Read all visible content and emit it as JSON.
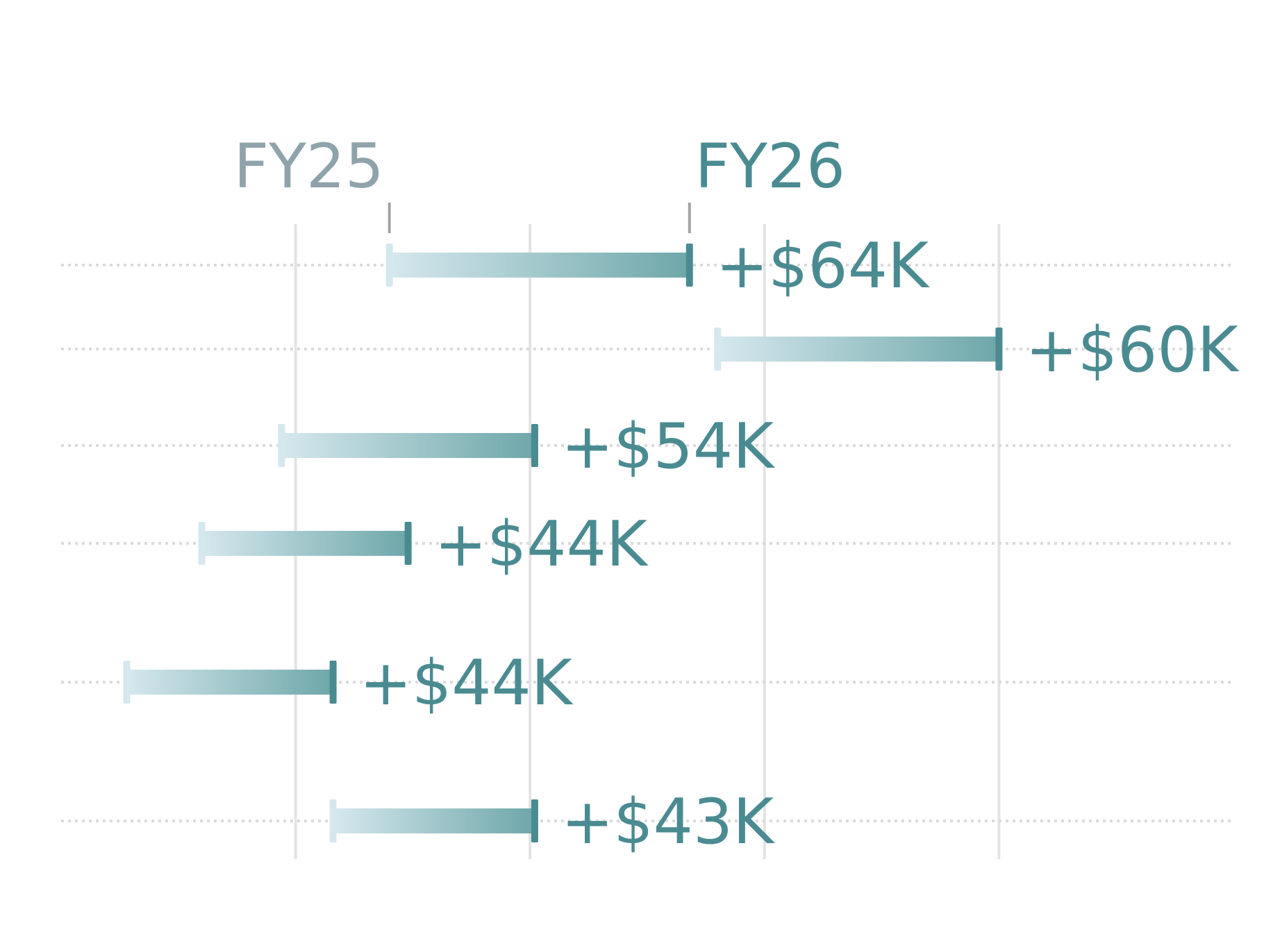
{
  "chart_data": {
    "type": "dumbbell",
    "title": "",
    "xlabel": "",
    "ylabel": "",
    "series": [
      {
        "name": "FY25"
      },
      {
        "name": "FY26"
      }
    ],
    "rows": [
      {
        "fy25": 420,
        "fy26": 484,
        "delta_label": "+$64K"
      },
      {
        "fy25": 490,
        "fy26": 550,
        "delta_label": "+$60K"
      },
      {
        "fy25": 397,
        "fy26": 451,
        "delta_label": "+$54K"
      },
      {
        "fy25": 380,
        "fy26": 424,
        "delta_label": "+$44K"
      },
      {
        "fy25": 364,
        "fy26": 408,
        "delta_label": "+$44K"
      },
      {
        "fy25": 408,
        "fy26": 451,
        "delta_label": "+$43K"
      }
    ],
    "xlim": [
      350,
      600
    ],
    "grid": true,
    "legend": "header-top"
  },
  "colors": {
    "fy25": "#8fa3ab",
    "fy26": "#4a8b91",
    "bar_start": "#d5e8ee",
    "bar_end": "#6ea7a9",
    "grid_vertical": "#e3e3e3",
    "grid_dotted": "#dadada",
    "header_tick": "#a3a3a3"
  }
}
